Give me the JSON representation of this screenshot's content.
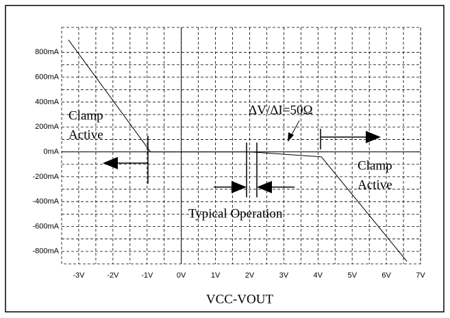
{
  "chart_data": {
    "type": "line",
    "xlabel": "VCC-VOUT",
    "x": [
      -3.3,
      -0.9,
      2.0,
      4.1,
      6.6
    ],
    "series": [
      {
        "color": "#000000",
        "values": [
          900,
          0,
          0,
          -40,
          -880
        ]
      }
    ],
    "xlim": [
      -3.5,
      7
    ],
    "ylim": [
      -900,
      1000
    ],
    "xticks": [
      {
        "value": -3,
        "label": "-3V"
      },
      {
        "value": -2,
        "label": "-2V"
      },
      {
        "value": -1,
        "label": "-1V"
      },
      {
        "value": 0,
        "label": "0V"
      },
      {
        "value": 1,
        "label": "1V"
      },
      {
        "value": 2,
        "label": "2V"
      },
      {
        "value": 3,
        "label": "3V"
      },
      {
        "value": 4,
        "label": "4V"
      },
      {
        "value": 5,
        "label": "5V"
      },
      {
        "value": 6,
        "label": "6V"
      },
      {
        "value": 7,
        "label": "7V"
      }
    ],
    "yticks": [
      {
        "value": 800,
        "label": "800mA"
      },
      {
        "value": 600,
        "label": "600mA"
      },
      {
        "value": 400,
        "label": "400mA"
      },
      {
        "value": 200,
        "label": "200mA"
      },
      {
        "value": 0,
        "label": "0mA"
      },
      {
        "value": -200,
        "label": "-200mA"
      },
      {
        "value": -400,
        "label": "-400mA"
      },
      {
        "value": -600,
        "label": "-600mA"
      },
      {
        "value": -800,
        "label": "-800mA"
      }
    ],
    "grid": true,
    "annotations": [
      "Clamp",
      "Active",
      "ΔV/ΔI=50Ω",
      "Clamp",
      "Active",
      "Typical Operation"
    ]
  }
}
